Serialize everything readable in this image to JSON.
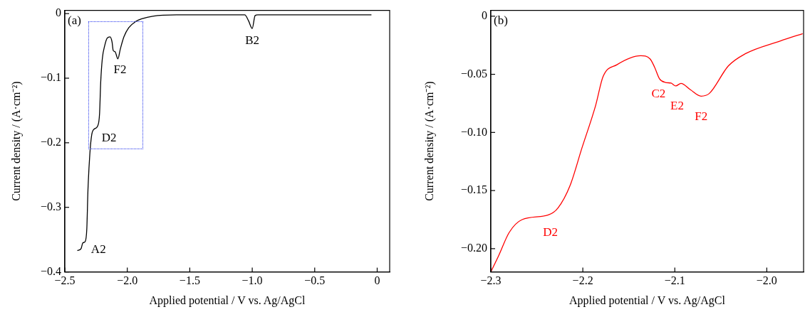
{
  "chart_data": [
    {
      "type": "line",
      "xlabel": "Applied potential / V vs. Ag/AgCl",
      "ylabel": "Current density / (A·cm⁻²)",
      "xlim": [
        -2.5,
        0.1
      ],
      "ylim": [
        -0.4,
        0.005
      ],
      "xticks": [
        {
          "value": -2.5,
          "label": "−2.5"
        },
        {
          "value": -2.0,
          "label": "−2.0"
        },
        {
          "value": -1.5,
          "label": "−1.5"
        },
        {
          "value": -1.0,
          "label": "−1.0"
        },
        {
          "value": -0.5,
          "label": "−0.5"
        },
        0
      ],
      "yticks": [
        0,
        {
          "value": -0.1,
          "label": "−0.1"
        },
        {
          "value": -0.2,
          "label": "−0.2"
        },
        {
          "value": -0.3,
          "label": "−0.3"
        },
        {
          "value": -0.4,
          "label": "−0.4"
        }
      ],
      "grid": false,
      "legend": false,
      "marker": "none",
      "line_style": "solid",
      "annotations": [
        "(a)",
        {
          "text": "A2",
          "x": -2.356,
          "y": -0.355
        },
        {
          "text": "D2",
          "x": -2.237,
          "y": -0.174
        },
        {
          "text": "F2",
          "x": -2.075,
          "y": -0.07
        },
        {
          "text": "B2",
          "x": -1.0,
          "y": -0.023
        }
      ],
      "series": [
        {
          "color": "#000000",
          "x": [
            -2.4,
            -2.37,
            -2.356,
            -2.337,
            -2.324,
            -2.315,
            -2.3,
            -2.285,
            -2.266,
            -2.237,
            -2.222,
            -2.213,
            -2.2,
            -2.18,
            -2.161,
            -2.138,
            -2.122,
            -2.113,
            -2.098,
            -2.075,
            -2.056,
            -2.027,
            -1.989,
            -1.931,
            -1.883,
            -1.797,
            -1.605,
            -1.3,
            -1.06,
            -1.03,
            -1.0,
            -0.977,
            -0.955,
            -0.7,
            -0.4,
            -0.046
          ],
          "values": [
            -0.367,
            -0.364,
            -0.355,
            -0.353,
            -0.333,
            -0.274,
            -0.218,
            -0.188,
            -0.179,
            -0.174,
            -0.155,
            -0.107,
            -0.07,
            -0.049,
            -0.038,
            -0.036,
            -0.044,
            -0.057,
            -0.059,
            -0.07,
            -0.055,
            -0.036,
            -0.022,
            -0.012,
            -0.008,
            -0.004,
            -0.002,
            -0.002,
            -0.002,
            -0.011,
            -0.023,
            -0.003,
            -0.002,
            -0.002,
            -0.002,
            -0.002
          ]
        }
      ]
    },
    {
      "type": "line",
      "xlabel": "Applied potential / V vs. Ag/AgCl",
      "ylabel": "Current density / (A·cm⁻²)",
      "xlim": [
        -2.3,
        -1.96
      ],
      "ylim": [
        -0.22,
        0.005
      ],
      "xticks": [
        {
          "value": -2.3,
          "label": "−2.3"
        },
        {
          "value": -2.2,
          "label": "−2.2"
        },
        {
          "value": -2.1,
          "label": "−2.1"
        },
        {
          "value": -2.0,
          "label": "−2.0"
        }
      ],
      "yticks": [
        0,
        {
          "value": -0.05,
          "label": "−0.05"
        },
        {
          "value": -0.1,
          "label": "−0.10"
        },
        {
          "value": -0.15,
          "label": "−0.15"
        },
        {
          "value": -0.2,
          "label": "−0.20"
        }
      ],
      "grid": false,
      "legend": false,
      "marker": "none",
      "line_style": "solid",
      "annotations": [
        "(b)",
        {
          "text": "C2",
          "x": -2.11,
          "y": -0.057
        },
        {
          "text": "E2",
          "x": -2.099,
          "y": -0.06
        },
        {
          "text": "F2",
          "x": -2.0714,
          "y": -0.0688
        },
        {
          "text": "D2",
          "x": -2.2375,
          "y": -0.171
        }
      ],
      "series": [
        {
          "color": "#ff0000",
          "x": [
            -2.3,
            -2.2915,
            -2.28,
            -2.266,
            -2.2375,
            -2.227,
            -2.214,
            -2.201,
            -2.186,
            -2.178,
            -2.163,
            -2.137,
            -2.127,
            -2.122,
            -2.1165,
            -2.11,
            -2.104,
            -2.099,
            -2.0933,
            -2.083,
            -2.0714,
            -2.0624,
            -2.0418,
            -2.0238,
            -1.9852,
            -1.961
          ],
          "values": [
            -0.22,
            -0.206,
            -0.186,
            -0.175,
            -0.171,
            -0.165,
            -0.146,
            -0.1135,
            -0.0766,
            -0.052,
            -0.0418,
            -0.034,
            -0.0367,
            -0.0438,
            -0.054,
            -0.057,
            -0.0576,
            -0.06,
            -0.0578,
            -0.0633,
            -0.0688,
            -0.0664,
            -0.0428,
            -0.0325,
            -0.0213,
            -0.015
          ]
        }
      ]
    }
  ]
}
